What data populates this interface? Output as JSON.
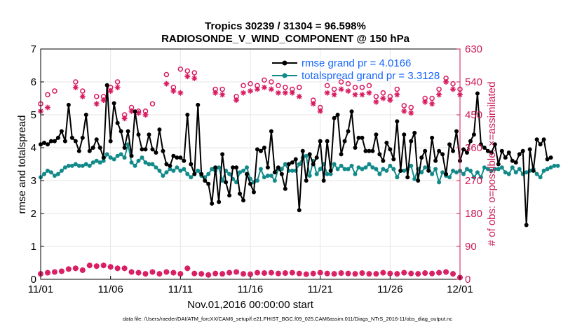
{
  "chart_data": {
    "type": "line",
    "title_line1": "Tropics 30239 / 31304 = 96.598%",
    "title_line2": "RADIOSONDE_V_WIND_COMPONENT @ 150 hPa",
    "xlabel": "Nov.01,2016 00:00:00 start",
    "ylabel_left": "rmse and totalspread",
    "ylabel_right": "# of obs: o=possible; ×=assimilated",
    "footer": "data file: /Users/raeder/DAI/ATM_forcXX/CAM6_setup/f.e21.FHIST_BGC.f09_025.CAM6assim.011/Diags_NTrS_2016-11/obs_diag_output.nc",
    "x_tick_labels": [
      "11/01",
      "11/06",
      "11/11",
      "11/16",
      "11/21",
      "11/26",
      "12/01"
    ],
    "x_tick_days": [
      0,
      5,
      10,
      15,
      20,
      25,
      30
    ],
    "xlim": [
      0,
      30
    ],
    "ylim_left": [
      0,
      7
    ],
    "ylim_right": [
      0,
      630
    ],
    "y_ticks_left": [
      "0",
      "1",
      "2",
      "3",
      "4",
      "5",
      "6",
      "7"
    ],
    "y_ticks_right": [
      "0",
      "90",
      "180",
      "270",
      "360",
      "450",
      "540",
      "630"
    ],
    "legend": {
      "rmse_label": "rmse grand pr = 4.0166",
      "spread_label": "totalspread grand pr = 3.3128"
    },
    "colors": {
      "rmse": "#000000",
      "spread": "#138a8a",
      "obs": "#d81b60",
      "right_axis": "#cc1a55",
      "legend_text": "#1565ff",
      "grid": "#e6e6e6"
    },
    "x_step_days": 0.25,
    "series": [
      {
        "name": "rmse",
        "values": [
          4.1,
          4.15,
          4.1,
          4.2,
          4.2,
          4.3,
          4.5,
          4.2,
          5.3,
          4.3,
          4.2,
          3.9,
          4.3,
          5.0,
          3.9,
          4.0,
          4.25,
          4.0,
          3.7,
          5.9,
          4.2,
          5.35,
          4.75,
          4.5,
          4.0,
          4.5,
          3.75,
          5.1,
          4.4,
          3.95,
          3.95,
          4.4,
          3.95,
          3.85,
          4.55,
          3.9,
          3.5,
          3.45,
          3.75,
          3.7,
          3.7,
          3.6,
          5.0,
          3.5,
          3.2,
          5.3,
          3.2,
          3.0,
          2.9,
          2.3,
          3.4,
          2.35,
          3.8,
          2.95,
          2.55,
          3.4,
          3.4,
          2.6,
          2.4,
          3.2,
          2.9,
          2.65,
          3.95,
          3.9,
          4.0,
          3.4,
          4.5,
          3.25,
          3.4,
          3.2,
          2.75,
          3.5,
          3.55,
          3.65,
          2.1,
          3.9,
          3.0,
          3.8,
          3.5,
          3.7,
          4.2,
          3.0,
          4.2,
          3.3,
          4.9,
          5.0,
          3.8,
          4.2,
          4.5,
          5.1,
          4.0,
          4.3,
          4.3,
          3.9,
          3.9,
          3.9,
          4.4,
          3.8,
          3.6,
          4.15,
          3.95,
          3.65,
          4.8,
          3.3,
          4.4,
          3.1,
          4.2,
          4.45,
          3.0,
          3.7,
          3.9,
          3.3,
          4.3,
          3.6,
          3.9,
          3.8,
          3.2,
          4.1,
          3.9,
          4.5,
          3.6,
          3.95,
          3.85,
          4.2,
          4.4,
          5.65,
          4.1,
          4.0,
          3.9,
          3.85,
          4.1,
          3.5,
          3.9,
          3.7,
          3.85,
          3.6,
          3.55,
          3.8,
          3.9,
          1.65,
          3.95,
          3.3,
          4.25,
          4.1,
          4.25,
          3.65,
          3.7
        ]
      },
      {
        "name": "totalspread",
        "values": [
          3.1,
          3.2,
          3.3,
          3.25,
          3.15,
          3.2,
          3.3,
          3.4,
          3.45,
          3.45,
          3.5,
          3.45,
          3.45,
          3.5,
          3.45,
          3.55,
          3.6,
          3.55,
          3.6,
          3.8,
          3.7,
          3.65,
          3.75,
          3.8,
          3.7,
          4.1,
          3.55,
          3.45,
          3.6,
          3.7,
          3.55,
          3.5,
          3.5,
          3.4,
          3.3,
          3.15,
          3.25,
          3.35,
          3.3,
          3.4,
          3.3,
          3.35,
          3.2,
          3.1,
          3.2,
          3.3,
          3.15,
          3.1,
          3.2,
          3.35,
          3.3,
          3.4,
          3.0,
          3.3,
          3.2,
          3.05,
          2.95,
          3.25,
          3.3,
          3.4,
          3.05,
          2.95,
          3.0,
          3.35,
          3.1,
          3.15,
          3.15,
          3.0,
          3.35,
          3.35,
          3.5,
          3.3,
          3.3,
          3.3,
          3.5,
          3.7,
          3.75,
          3.15,
          3.6,
          3.2,
          3.35,
          3.5,
          3.2,
          3.2,
          3.5,
          3.35,
          3.45,
          3.35,
          3.35,
          3.45,
          3.2,
          3.4,
          3.35,
          3.4,
          3.5,
          3.4,
          3.35,
          3.2,
          3.35,
          3.3,
          3.45,
          3.35,
          3.1,
          3.3,
          3.3,
          3.35,
          3.45,
          3.05,
          3.35,
          3.25,
          3.4,
          3.4,
          3.2,
          3.35,
          2.95,
          3.25,
          3.15,
          3.1,
          3.3,
          3.25,
          3.3,
          3.2,
          3.35,
          3.3,
          3.1,
          3.25,
          3.1,
          3.4,
          3.35,
          3.3,
          3.35,
          3.35,
          3.4,
          3.25,
          3.2,
          3.4,
          3.25,
          3.35,
          3.2,
          3.25,
          3.3,
          3.35,
          3.2,
          3.1,
          3.3,
          3.35,
          3.4,
          3.45,
          3.45
        ]
      }
    ],
    "obs_possible_large": [
      [
        0.0,
        480
      ],
      [
        0.5,
        505
      ],
      [
        1.0,
        515
      ],
      [
        2.5,
        540
      ],
      [
        3.0,
        515
      ],
      [
        4.0,
        500
      ],
      [
        4.5,
        500
      ],
      [
        5.0,
        525
      ],
      [
        5.5,
        540
      ],
      [
        6.0,
        450
      ],
      [
        6.5,
        470
      ],
      [
        7.0,
        460
      ],
      [
        7.5,
        460
      ],
      [
        8.0,
        480
      ],
      [
        9.0,
        560
      ],
      [
        9.5,
        525
      ],
      [
        10.0,
        575
      ],
      [
        10.5,
        570
      ],
      [
        11.0,
        565
      ],
      [
        12.5,
        520
      ],
      [
        13.0,
        520
      ],
      [
        14.0,
        500
      ],
      [
        14.5,
        530
      ],
      [
        15.0,
        535
      ],
      [
        15.5,
        530
      ],
      [
        16.0,
        545
      ],
      [
        16.5,
        540
      ],
      [
        17.0,
        530
      ],
      [
        17.5,
        525
      ],
      [
        18.0,
        520
      ],
      [
        18.5,
        525
      ],
      [
        19.5,
        490
      ],
      [
        20.0,
        470
      ],
      [
        20.5,
        530
      ],
      [
        21.0,
        520
      ],
      [
        21.5,
        540
      ],
      [
        22.0,
        535
      ],
      [
        22.5,
        525
      ],
      [
        23.0,
        525
      ],
      [
        23.5,
        530
      ],
      [
        24.0,
        500
      ],
      [
        24.5,
        510
      ],
      [
        25.0,
        500
      ],
      [
        25.5,
        520
      ],
      [
        26.0,
        475
      ],
      [
        26.5,
        470
      ],
      [
        27.5,
        495
      ],
      [
        28.0,
        495
      ],
      [
        28.5,
        520
      ],
      [
        29.0,
        550
      ],
      [
        29.5,
        535
      ],
      [
        30.0,
        520
      ]
    ],
    "obs_assim_large": [
      [
        0.0,
        460
      ],
      [
        0.5,
        470
      ],
      [
        2.5,
        525
      ],
      [
        3.0,
        500
      ],
      [
        4.0,
        480
      ],
      [
        4.5,
        490
      ],
      [
        5.0,
        515
      ],
      [
        5.5,
        525
      ],
      [
        6.0,
        440
      ],
      [
        6.5,
        460
      ],
      [
        7.0,
        455
      ],
      [
        7.5,
        450
      ],
      [
        9.0,
        535
      ],
      [
        9.5,
        515
      ],
      [
        10.0,
        510
      ],
      [
        10.5,
        555
      ],
      [
        11.0,
        550
      ],
      [
        12.5,
        510
      ],
      [
        13.0,
        505
      ],
      [
        14.0,
        490
      ],
      [
        14.5,
        510
      ],
      [
        15.0,
        515
      ],
      [
        15.5,
        520
      ],
      [
        16.0,
        525
      ],
      [
        16.5,
        520
      ],
      [
        17.0,
        510
      ],
      [
        17.5,
        510
      ],
      [
        18.0,
        510
      ],
      [
        18.5,
        500
      ],
      [
        19.5,
        480
      ],
      [
        20.0,
        460
      ],
      [
        20.5,
        510
      ],
      [
        21.0,
        505
      ],
      [
        21.5,
        520
      ],
      [
        22.0,
        515
      ],
      [
        22.5,
        505
      ],
      [
        23.0,
        505
      ],
      [
        23.5,
        510
      ],
      [
        24.0,
        485
      ],
      [
        24.5,
        495
      ],
      [
        25.0,
        490
      ],
      [
        25.5,
        505
      ],
      [
        26.0,
        460
      ],
      [
        26.5,
        455
      ],
      [
        27.5,
        485
      ],
      [
        28.0,
        480
      ],
      [
        28.5,
        505
      ],
      [
        29.0,
        540
      ],
      [
        29.5,
        520
      ],
      [
        30.0,
        505
      ]
    ],
    "obs_small": [
      [
        0.0,
        15
      ],
      [
        0.5,
        18
      ],
      [
        1.0,
        20
      ],
      [
        1.5,
        22
      ],
      [
        2.0,
        28
      ],
      [
        2.5,
        30
      ],
      [
        3.0,
        25
      ],
      [
        3.5,
        38
      ],
      [
        4.0,
        36
      ],
      [
        4.5,
        38
      ],
      [
        5.0,
        34
      ],
      [
        5.5,
        30
      ],
      [
        6.0,
        30
      ],
      [
        6.5,
        20
      ],
      [
        7.0,
        18
      ],
      [
        7.5,
        15
      ],
      [
        8.0,
        20
      ],
      [
        8.5,
        15
      ],
      [
        9.0,
        20
      ],
      [
        9.5,
        18
      ],
      [
        10.0,
        15
      ],
      [
        10.5,
        30
      ],
      [
        11.0,
        16
      ],
      [
        11.5,
        15
      ],
      [
        12.0,
        12
      ],
      [
        12.5,
        16
      ],
      [
        13.0,
        15
      ],
      [
        13.5,
        18
      ],
      [
        14.0,
        20
      ],
      [
        14.5,
        15
      ],
      [
        15.0,
        14
      ],
      [
        15.5,
        18
      ],
      [
        16.0,
        17
      ],
      [
        16.5,
        18
      ],
      [
        17.0,
        16
      ],
      [
        17.5,
        17
      ],
      [
        18.0,
        18
      ],
      [
        18.5,
        16
      ],
      [
        19.0,
        14
      ],
      [
        19.5,
        16
      ],
      [
        20.0,
        18
      ],
      [
        20.5,
        16
      ],
      [
        21.0,
        15
      ],
      [
        21.5,
        17
      ],
      [
        22.0,
        16
      ],
      [
        22.5,
        15
      ],
      [
        23.0,
        17
      ],
      [
        23.5,
        15
      ],
      [
        24.0,
        15
      ],
      [
        24.5,
        18
      ],
      [
        25.0,
        16
      ],
      [
        25.5,
        15
      ],
      [
        26.0,
        18
      ],
      [
        26.5,
        16
      ],
      [
        27.0,
        15
      ],
      [
        27.5,
        17
      ],
      [
        28.0,
        16
      ],
      [
        28.5,
        18
      ],
      [
        29.0,
        20
      ],
      [
        29.5,
        15
      ],
      [
        30.0,
        5
      ]
    ]
  }
}
